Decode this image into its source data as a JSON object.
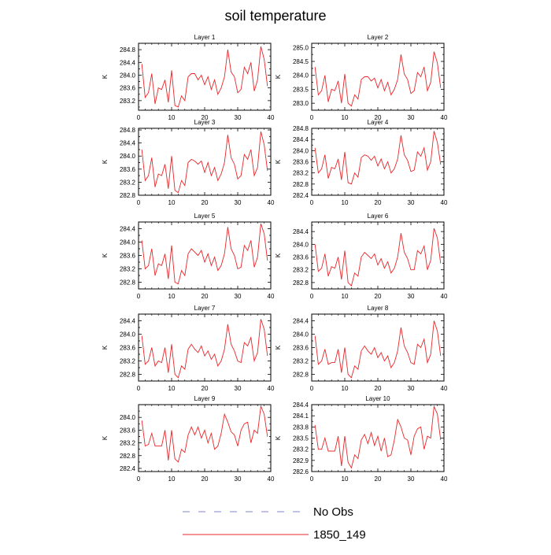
{
  "chart_data": {
    "type": "line",
    "title": "soil temperature",
    "x": [
      1,
      2,
      3,
      4,
      5,
      6,
      7,
      8,
      9,
      10,
      11,
      12,
      13,
      14,
      15,
      16,
      17,
      18,
      19,
      20,
      21,
      22,
      23,
      24,
      25,
      26,
      27,
      28,
      29,
      30,
      31,
      32,
      33,
      34,
      35,
      36,
      37,
      38,
      39
    ],
    "legend": [
      {
        "name": "No Obs",
        "style": "dashed",
        "color": "#7f86c6"
      },
      {
        "name": "1850_149",
        "style": "solid",
        "color": "#e8262a"
      }
    ],
    "series_color": "#e8262a",
    "panels": [
      {
        "title": "Layer 1",
        "ylabel": "K",
        "ylim": [
          282.9,
          285.0
        ],
        "yticks": [
          "283.2",
          "283.6",
          "284.0",
          "284.4",
          "284.8"
        ],
        "xlim": [
          0,
          40
        ],
        "xticks": [
          "0",
          "10",
          "20",
          "30",
          "40"
        ],
        "values": [
          284.35,
          283.3,
          283.45,
          284.05,
          283.1,
          283.6,
          283.55,
          283.85,
          283.15,
          284.15,
          283.05,
          283.0,
          283.35,
          283.2,
          283.95,
          284.05,
          284.05,
          283.85,
          284.0,
          283.7,
          283.95,
          283.55,
          283.85,
          283.4,
          283.6,
          283.95,
          284.8,
          284.1,
          283.95,
          283.45,
          283.55,
          284.25,
          284.05,
          284.4,
          283.5,
          283.85,
          284.9,
          284.5,
          283.65
        ]
      },
      {
        "title": "Layer 2",
        "ylabel": "K",
        "ylim": [
          282.75,
          285.15
        ],
        "yticks": [
          "283.0",
          "283.5",
          "284.0",
          "284.5",
          "285.0"
        ],
        "xlim": [
          0,
          40
        ],
        "xticks": [
          "0",
          "10",
          "20",
          "30",
          "40"
        ],
        "values": [
          284.3,
          283.3,
          283.45,
          284.0,
          283.05,
          283.5,
          283.45,
          283.8,
          283.0,
          284.05,
          283.0,
          282.9,
          283.3,
          283.15,
          283.85,
          283.95,
          283.95,
          283.8,
          283.9,
          283.55,
          283.85,
          283.45,
          283.75,
          283.3,
          283.5,
          283.85,
          284.75,
          284.05,
          283.85,
          283.35,
          283.45,
          284.1,
          283.95,
          284.3,
          283.45,
          283.75,
          284.85,
          284.45,
          283.55
        ]
      },
      {
        "title": "Layer 3",
        "ylabel": "K",
        "ylim": [
          282.8,
          284.85
        ],
        "yticks": [
          "282.8",
          "283.2",
          "283.6",
          "284.0",
          "284.4",
          "284.8"
        ],
        "xlim": [
          0,
          40
        ],
        "xticks": [
          "0",
          "10",
          "20",
          "30",
          "40"
        ],
        "values": [
          284.2,
          283.25,
          283.4,
          283.95,
          283.05,
          283.45,
          283.4,
          283.75,
          283.0,
          284.0,
          282.95,
          282.88,
          283.25,
          283.1,
          283.8,
          283.9,
          283.85,
          283.75,
          283.85,
          283.5,
          283.8,
          283.4,
          283.65,
          283.25,
          283.45,
          283.8,
          284.65,
          283.95,
          283.75,
          283.3,
          283.4,
          284.05,
          283.9,
          284.2,
          283.4,
          283.65,
          284.75,
          284.35,
          283.55
        ]
      },
      {
        "title": "Layer 4",
        "ylabel": "K",
        "ylim": [
          282.4,
          284.8
        ],
        "yticks": [
          "282.4",
          "282.8",
          "283.2",
          "283.6",
          "284.0",
          "284.4",
          "284.8"
        ],
        "xlim": [
          0,
          40
        ],
        "xticks": [
          "0",
          "10",
          "20",
          "30",
          "40"
        ],
        "values": [
          284.1,
          283.2,
          283.35,
          283.85,
          283.0,
          283.4,
          283.35,
          283.7,
          282.95,
          283.95,
          282.85,
          282.8,
          283.2,
          283.05,
          283.75,
          283.85,
          283.8,
          283.65,
          283.8,
          283.45,
          283.7,
          283.35,
          283.6,
          283.2,
          283.35,
          283.7,
          284.55,
          283.85,
          283.65,
          283.25,
          283.3,
          283.95,
          283.8,
          284.1,
          283.3,
          283.6,
          284.7,
          284.3,
          283.5
        ]
      },
      {
        "title": "Layer 5",
        "ylabel": "K",
        "ylim": [
          282.6,
          284.6
        ],
        "yticks": [
          "282.8",
          "283.2",
          "283.6",
          "284.0",
          "284.4"
        ],
        "xlim": [
          0,
          40
        ],
        "xticks": [
          "0",
          "10",
          "20",
          "30",
          "40"
        ],
        "values": [
          284.05,
          283.2,
          283.3,
          283.8,
          283.0,
          283.35,
          283.3,
          283.65,
          282.9,
          283.9,
          282.8,
          282.75,
          283.15,
          283.0,
          283.65,
          283.8,
          283.7,
          283.6,
          283.75,
          283.4,
          283.65,
          283.3,
          283.55,
          283.15,
          283.3,
          283.65,
          284.45,
          283.8,
          283.6,
          283.2,
          283.25,
          283.9,
          283.75,
          284.05,
          283.25,
          283.55,
          284.55,
          284.25,
          283.45
        ]
      },
      {
        "title": "Layer 6",
        "ylabel": "K",
        "ylim": [
          282.6,
          284.7
        ],
        "yticks": [
          "282.8",
          "283.2",
          "283.6",
          "284.0",
          "284.4"
        ],
        "xlim": [
          0,
          40
        ],
        "xticks": [
          "0",
          "10",
          "20",
          "30",
          "40"
        ],
        "values": [
          284.0,
          283.15,
          283.25,
          283.7,
          283.0,
          283.3,
          283.25,
          283.6,
          282.9,
          283.8,
          282.8,
          282.7,
          283.1,
          283.0,
          283.6,
          283.75,
          283.65,
          283.55,
          283.7,
          283.35,
          283.55,
          283.25,
          283.45,
          283.1,
          283.25,
          283.6,
          284.35,
          283.75,
          283.55,
          283.2,
          283.2,
          283.8,
          283.7,
          283.95,
          283.2,
          283.5,
          284.5,
          284.2,
          283.4
        ]
      },
      {
        "title": "Layer 7",
        "ylabel": "K",
        "ylim": [
          282.6,
          284.6
        ],
        "yticks": [
          "282.8",
          "283.2",
          "283.6",
          "284.0",
          "284.4"
        ],
        "xlim": [
          0,
          40
        ],
        "xticks": [
          "0",
          "10",
          "20",
          "30",
          "40"
        ],
        "values": [
          283.95,
          283.1,
          283.2,
          283.6,
          283.05,
          283.2,
          283.15,
          283.6,
          282.85,
          283.7,
          282.8,
          282.7,
          283.05,
          282.95,
          283.55,
          283.7,
          283.55,
          283.45,
          283.65,
          283.35,
          283.5,
          283.25,
          283.4,
          283.05,
          283.2,
          283.55,
          284.3,
          283.7,
          283.5,
          283.2,
          283.15,
          283.75,
          283.65,
          283.9,
          283.2,
          283.45,
          284.45,
          284.15,
          283.35
        ]
      },
      {
        "title": "Layer 8",
        "ylabel": "K",
        "ylim": [
          282.6,
          284.6
        ],
        "yticks": [
          "282.8",
          "283.2",
          "283.6",
          "284.0",
          "284.4"
        ],
        "xlim": [
          0,
          40
        ],
        "xticks": [
          "0",
          "10",
          "20",
          "30",
          "40"
        ],
        "values": [
          283.95,
          283.1,
          283.2,
          283.55,
          283.1,
          283.15,
          283.15,
          283.55,
          282.85,
          283.6,
          282.8,
          282.7,
          283.05,
          282.95,
          283.5,
          283.65,
          283.5,
          283.4,
          283.6,
          283.3,
          283.45,
          283.2,
          283.35,
          283.0,
          283.15,
          283.5,
          284.2,
          283.65,
          283.45,
          283.15,
          283.1,
          283.7,
          283.6,
          283.85,
          283.15,
          283.4,
          284.4,
          284.1,
          283.35
        ]
      },
      {
        "title": "Layer 9",
        "ylabel": "K",
        "ylim": [
          282.3,
          284.4
        ],
        "yticks": [
          "282.4",
          "282.8",
          "283.2",
          "283.6",
          "284.0"
        ],
        "xlim": [
          0,
          40
        ],
        "xticks": [
          "0",
          "10",
          "20",
          "30",
          "40"
        ],
        "values": [
          283.9,
          283.1,
          283.15,
          283.5,
          283.1,
          283.1,
          283.1,
          283.6,
          282.65,
          283.6,
          282.7,
          282.6,
          283.0,
          282.9,
          283.45,
          283.7,
          283.45,
          283.7,
          283.35,
          283.6,
          283.2,
          283.5,
          283.0,
          283.1,
          283.5,
          284.1,
          283.85,
          283.55,
          283.45,
          283.1,
          283.6,
          283.8,
          283.85,
          283.2,
          283.6,
          283.5,
          284.35,
          284.1,
          283.4
        ]
      },
      {
        "title": "Layer 10",
        "ylabel": "K",
        "ylim": [
          282.6,
          284.4
        ],
        "yticks": [
          "282.6",
          "282.9",
          "283.2",
          "283.5",
          "283.8",
          "284.1",
          "284.4"
        ],
        "xlim": [
          0,
          40
        ],
        "xticks": [
          "0",
          "10",
          "20",
          "30",
          "40"
        ],
        "values": [
          283.85,
          283.2,
          283.2,
          283.5,
          283.15,
          283.15,
          283.15,
          283.55,
          282.75,
          283.55,
          282.85,
          282.7,
          283.05,
          282.95,
          283.45,
          283.6,
          283.35,
          283.65,
          283.3,
          283.55,
          283.15,
          283.5,
          283.0,
          283.05,
          283.45,
          284.0,
          283.8,
          283.5,
          283.45,
          283.05,
          283.55,
          283.75,
          283.8,
          283.2,
          283.55,
          283.5,
          284.35,
          284.15,
          283.45
        ]
      }
    ]
  }
}
